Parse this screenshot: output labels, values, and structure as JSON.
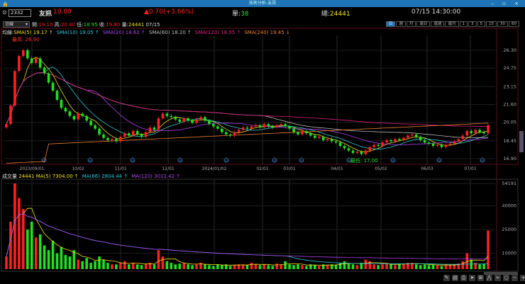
{
  "window": {
    "title": "技術分析-友訊",
    "controls": "– ▫ ×"
  },
  "quote": {
    "code": "2332",
    "name": "友訊",
    "price": "19.80",
    "change": "▲0.70(+3.66%)",
    "unit_label": "單:",
    "unit": "38",
    "total_label": "總:",
    "total": "24441",
    "datetime": "07/15 14:30:00"
  },
  "ohlc": {
    "period": "日線",
    "open_label": "開:",
    "open": "19.10",
    "high_label": "高:",
    "high": "20.40",
    "low_label": "低:",
    "low": "18.95",
    "close_label": "收:",
    "close": "19.80",
    "vol_label": "量:",
    "vol": "24441",
    "date": "07/15"
  },
  "tabs": [
    "日",
    "週",
    "月",
    "還日",
    "還週",
    "還月",
    "1",
    "3",
    "5",
    "15",
    "30",
    "60"
  ],
  "ma_legend": {
    "label": "均線:",
    "items": [
      {
        "text": "SMA(5) 19.17 ↑",
        "color": "#f0e020"
      },
      {
        "text": "SMA(10) 19.05 ↑",
        "color": "#30c8d8"
      },
      {
        "text": "SMA(20) 18.62 ↑",
        "color": "#b040f0"
      },
      {
        "text": "SMA(60) 18.20 ↑",
        "color": "#bbbbbb"
      },
      {
        "text": "SMA(120) 18.55 ↑",
        "color": "#e02080"
      },
      {
        "text": "SMA(240) 19.45 ↓",
        "color": "#f08030"
      }
    ]
  },
  "vol_legend": {
    "label": "成交量",
    "value": "24441",
    "items": [
      {
        "text": "MA(5) 7304.00 ↑",
        "color": "#f0e020"
      },
      {
        "text": "MA(66) 2804.44 ↑",
        "color": "#30c8d8"
      },
      {
        "text": "MA(120) 3011.42 ↑",
        "color": "#b040f0"
      }
    ]
  },
  "annotations": {
    "high": "最高: 26.90",
    "low": "最低: 17.00"
  },
  "chart_data": [
    {
      "type": "candlestick",
      "price_ticks": [
        "26.30",
        "24.75",
        "23.15",
        "21.60",
        "20.05",
        "18.45",
        "16.90"
      ],
      "ylim": [
        16.9,
        26.3
      ],
      "date_labels": [
        "2023/09/01",
        "10/02",
        "11/01",
        "12/01",
        "2024/01/02",
        "02/01",
        "03/01",
        "04/01",
        "05/02",
        "06/03",
        "07/01"
      ],
      "closes": [
        19.9,
        21.5,
        24.5,
        25.8,
        26.3,
        25.6,
        25.2,
        25.6,
        24.8,
        24.3,
        23.5,
        22.8,
        22.0,
        21.3,
        21.0,
        20.6,
        20.3,
        20.8,
        20.6,
        20.2,
        19.8,
        19.5,
        19.0,
        18.7,
        18.5,
        18.6,
        18.4,
        18.8,
        19.1,
        18.9,
        19.3,
        19.0,
        18.8,
        19.2,
        19.6,
        19.4,
        20.4,
        20.8,
        20.6,
        20.5,
        20.3,
        20.1,
        20.4,
        20.2,
        20.0,
        20.3,
        20.5,
        20.2,
        19.9,
        19.7,
        19.5,
        19.2,
        19.0,
        18.9,
        19.2,
        19.4,
        19.6,
        19.5,
        19.7,
        19.8,
        19.6,
        19.9,
        19.7,
        19.6,
        19.8,
        19.9,
        19.7,
        19.5,
        19.2,
        19.0,
        19.3,
        19.1,
        18.9,
        18.7,
        18.8,
        18.5,
        18.6,
        18.4,
        18.3,
        18.0,
        17.8,
        17.6,
        17.4,
        17.5,
        17.3,
        17.6,
        17.9,
        18.1,
        18.0,
        18.3,
        18.5,
        18.4,
        18.6,
        18.5,
        18.7,
        18.9,
        19.0,
        18.8,
        18.5,
        18.3,
        18.2,
        18.0,
        18.1,
        17.9,
        18.1,
        18.2,
        18.4,
        18.6,
        18.9,
        19.3,
        19.1,
        19.4,
        19.2,
        19.1,
        19.8
      ]
    },
    {
      "type": "bar",
      "volume_ticks": [
        "54191",
        "40000",
        "25000",
        "10000"
      ],
      "ylim": [
        0,
        54191
      ],
      "values": [
        8000,
        30000,
        54191,
        45000,
        38000,
        25000,
        30000,
        20000,
        22000,
        15000,
        12000,
        18000,
        10000,
        14000,
        9000,
        8000,
        12000,
        6000,
        5000,
        7000,
        4000,
        5000,
        8000,
        6000,
        4000,
        3000,
        3000,
        4000,
        5000,
        3000,
        4000,
        3000,
        2500,
        3500,
        4000,
        3000,
        12000,
        8000,
        5000,
        4000,
        3000,
        3500,
        4000,
        3000,
        2500,
        3000,
        4000,
        3000,
        2500,
        2000,
        3000,
        2500,
        3000,
        2000,
        2500,
        3000,
        3000,
        2500,
        4000,
        3000,
        2500,
        3000,
        2500,
        2000,
        3500,
        3000,
        5000,
        3000,
        2500,
        3000,
        2500,
        2000,
        3000,
        2500,
        2000,
        3000,
        2500,
        3000,
        2500,
        4000,
        5000,
        3500,
        3000,
        2500,
        4000,
        6000,
        5000,
        3000,
        2500,
        3000,
        4000,
        3000,
        2500,
        3000,
        3500,
        4000,
        4000,
        3000,
        2500,
        3000,
        2500,
        3000,
        2500,
        2000,
        3000,
        2500,
        3000,
        3500,
        5000,
        10000,
        6000,
        4000,
        3000,
        3500,
        24441
      ]
    }
  ],
  "colors": {
    "up": "#ff2020",
    "down": "#20e020",
    "accent": "#1f74b8"
  }
}
